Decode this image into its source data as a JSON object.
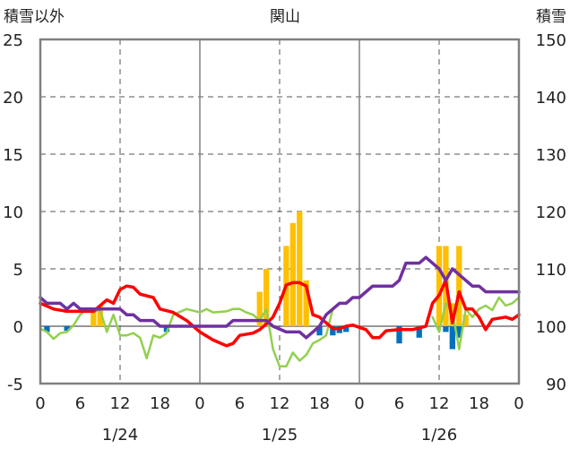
{
  "chart_data": {
    "type": "bar+line",
    "title": "関山",
    "left_axis_label": "積雪以外",
    "right_axis_label": "積雪",
    "left_ylim": [
      -5,
      25
    ],
    "left_ticks": [
      -5,
      0,
      5,
      10,
      15,
      20,
      25
    ],
    "right_ylim": [
      90,
      150
    ],
    "right_ticks": [
      90,
      100,
      110,
      120,
      130,
      140,
      150
    ],
    "x_hours_range": [
      0,
      72
    ],
    "x_tick_labels": [
      "0",
      "6",
      "12",
      "18",
      "0",
      "6",
      "12",
      "18",
      "0",
      "6",
      "12",
      "18",
      "0"
    ],
    "date_labels": [
      {
        "text": "1/24",
        "hour": 12
      },
      {
        "text": "1/25",
        "hour": 36
      },
      {
        "text": "1/26",
        "hour": 60
      }
    ],
    "day_boundaries_hours": [
      24,
      48
    ],
    "noon_lines_hours": [
      12,
      36,
      60
    ],
    "grid": "horizontal dashed",
    "colors": {
      "snowfall_bar": "#FFC000",
      "snow_depth_change_bar": "#0070C0",
      "temperature_line": "#FF0000",
      "green_line": "#92D050",
      "snow_depth_line": "#7030A0"
    },
    "series": [
      {
        "key": "snowfall",
        "kind": "bar",
        "axis": "left",
        "points": [
          [
            8,
            1.5
          ],
          [
            9,
            1.8
          ],
          [
            33,
            3
          ],
          [
            34,
            5
          ],
          [
            37,
            7
          ],
          [
            38,
            9
          ],
          [
            39,
            10
          ],
          [
            40,
            4
          ],
          [
            60,
            7
          ],
          [
            61,
            7
          ],
          [
            62,
            2
          ],
          [
            63,
            7
          ],
          [
            64,
            1
          ]
        ]
      },
      {
        "key": "negative_bar",
        "kind": "bar",
        "axis": "left",
        "points": [
          [
            1,
            -0.5
          ],
          [
            4,
            -0.4
          ],
          [
            19,
            -0.5
          ],
          [
            42,
            -0.8
          ],
          [
            44,
            -0.8
          ],
          [
            45,
            -0.6
          ],
          [
            46,
            -0.5
          ],
          [
            54,
            -1.5
          ],
          [
            57,
            -1
          ],
          [
            61,
            -0.5
          ],
          [
            62,
            -2
          ],
          [
            63,
            -1
          ]
        ]
      },
      {
        "key": "temperature",
        "kind": "line",
        "axis": "left",
        "points": [
          [
            0,
            2
          ],
          [
            2,
            1.5
          ],
          [
            4,
            1.3
          ],
          [
            6,
            1.3
          ],
          [
            8,
            1.3
          ],
          [
            10,
            2.3
          ],
          [
            11,
            2
          ],
          [
            12,
            3.2
          ],
          [
            13,
            3.5
          ],
          [
            14,
            3.4
          ],
          [
            15,
            2.8
          ],
          [
            17,
            2.5
          ],
          [
            18,
            1.5
          ],
          [
            20,
            1.2
          ],
          [
            22,
            0.5
          ],
          [
            24,
            -0.5
          ],
          [
            26,
            -1.2
          ],
          [
            28,
            -1.7
          ],
          [
            29,
            -1.5
          ],
          [
            30,
            -0.8
          ],
          [
            32,
            -0.6
          ],
          [
            33,
            -0.3
          ],
          [
            34,
            0.2
          ],
          [
            35,
            0.8
          ],
          [
            36,
            2
          ],
          [
            37,
            3.6
          ],
          [
            38,
            3.8
          ],
          [
            39,
            3.8
          ],
          [
            40,
            3.5
          ],
          [
            41,
            1
          ],
          [
            42,
            0.8
          ],
          [
            43,
            0.3
          ],
          [
            44,
            -0.2
          ],
          [
            45,
            -0.2
          ],
          [
            46,
            0
          ],
          [
            47,
            0.1
          ],
          [
            48,
            -0.1
          ],
          [
            49,
            -0.3
          ],
          [
            50,
            -1
          ],
          [
            51,
            -1
          ],
          [
            52,
            -0.4
          ],
          [
            54,
            -0.3
          ],
          [
            56,
            -0.3
          ],
          [
            58,
            0
          ],
          [
            59,
            2
          ],
          [
            60,
            2.7
          ],
          [
            61,
            4
          ],
          [
            62,
            0.3
          ],
          [
            63,
            3
          ],
          [
            64,
            1.5
          ],
          [
            65,
            1.5
          ],
          [
            66,
            0.8
          ],
          [
            67,
            -0.3
          ],
          [
            68,
            0.6
          ],
          [
            70,
            0.8
          ],
          [
            71,
            0.6
          ],
          [
            72,
            1
          ]
        ]
      },
      {
        "key": "green",
        "kind": "line",
        "axis": "left",
        "points": [
          [
            0,
            -0.2
          ],
          [
            1,
            -0.5
          ],
          [
            2,
            -1.1
          ],
          [
            3,
            -0.6
          ],
          [
            4,
            -0.5
          ],
          [
            5,
            0.1
          ],
          [
            6,
            1
          ],
          [
            7,
            1.5
          ],
          [
            8,
            1.3
          ],
          [
            9,
            1.4
          ],
          [
            10,
            -0.5
          ],
          [
            11,
            1
          ],
          [
            12,
            -0.8
          ],
          [
            13,
            -0.8
          ],
          [
            14,
            -0.6
          ],
          [
            15,
            -1
          ],
          [
            16,
            -2.8
          ],
          [
            17,
            -0.8
          ],
          [
            18,
            -1
          ],
          [
            19,
            -0.6
          ],
          [
            20,
            1
          ],
          [
            22,
            1.5
          ],
          [
            24,
            1.2
          ],
          [
            25,
            1.5
          ],
          [
            26,
            1.2
          ],
          [
            28,
            1.3
          ],
          [
            29,
            1.5
          ],
          [
            30,
            1.5
          ],
          [
            31,
            1.2
          ],
          [
            32,
            1
          ],
          [
            33,
            0.5
          ],
          [
            34,
            1.5
          ],
          [
            35,
            -2
          ],
          [
            36,
            -3.5
          ],
          [
            37,
            -3.5
          ],
          [
            38,
            -2.3
          ],
          [
            39,
            -3
          ],
          [
            40,
            -2.5
          ],
          [
            41,
            -1.5
          ],
          [
            42,
            -1.2
          ],
          [
            43,
            -0.8
          ],
          [
            44,
            1.5
          ]
        ]
      },
      {
        "key": "green_2",
        "kind": "line",
        "axis": "left",
        "points": [
          [
            59,
            0.8
          ],
          [
            60,
            -0.5
          ],
          [
            61,
            2
          ],
          [
            62,
            1.3
          ],
          [
            63,
            -2
          ],
          [
            64,
            1.5
          ],
          [
            65,
            0.8
          ],
          [
            66,
            1.5
          ],
          [
            67,
            1.8
          ],
          [
            68,
            1.4
          ],
          [
            69,
            2.5
          ],
          [
            70,
            1.8
          ],
          [
            71,
            2
          ],
          [
            72,
            2.5
          ]
        ]
      },
      {
        "key": "snow_depth",
        "kind": "line",
        "axis": "right",
        "points": [
          [
            0,
            105
          ],
          [
            1,
            104
          ],
          [
            3,
            104
          ],
          [
            4,
            103
          ],
          [
            5,
            104
          ],
          [
            6,
            103
          ],
          [
            8,
            103
          ],
          [
            10,
            103
          ],
          [
            12,
            103
          ],
          [
            13,
            102
          ],
          [
            14,
            102
          ],
          [
            15,
            101
          ],
          [
            17,
            101
          ],
          [
            18,
            100
          ],
          [
            21,
            100
          ],
          [
            24,
            100
          ],
          [
            26,
            100
          ],
          [
            28,
            100
          ],
          [
            29,
            101
          ],
          [
            30,
            101
          ],
          [
            31,
            101
          ],
          [
            32,
            101
          ],
          [
            33,
            101
          ],
          [
            34,
            101
          ],
          [
            35,
            100
          ],
          [
            37,
            99
          ],
          [
            38,
            99
          ],
          [
            39,
            99
          ],
          [
            40,
            98
          ],
          [
            41,
            99
          ],
          [
            42,
            100
          ],
          [
            43,
            102
          ],
          [
            44,
            103
          ],
          [
            45,
            104
          ],
          [
            46,
            104
          ],
          [
            47,
            105
          ],
          [
            48,
            105
          ],
          [
            49,
            106
          ],
          [
            50,
            107
          ],
          [
            51,
            107
          ],
          [
            52,
            107
          ],
          [
            53,
            107
          ],
          [
            54,
            108
          ],
          [
            55,
            111
          ],
          [
            56,
            111
          ],
          [
            57,
            111
          ],
          [
            58,
            112
          ],
          [
            59,
            111
          ],
          [
            60,
            110
          ],
          [
            61,
            108
          ],
          [
            62,
            110
          ],
          [
            63,
            109
          ],
          [
            64,
            108
          ],
          [
            65,
            107
          ],
          [
            66,
            107
          ],
          [
            67,
            106
          ],
          [
            68,
            106
          ],
          [
            70,
            106
          ],
          [
            72,
            106
          ]
        ]
      }
    ]
  }
}
